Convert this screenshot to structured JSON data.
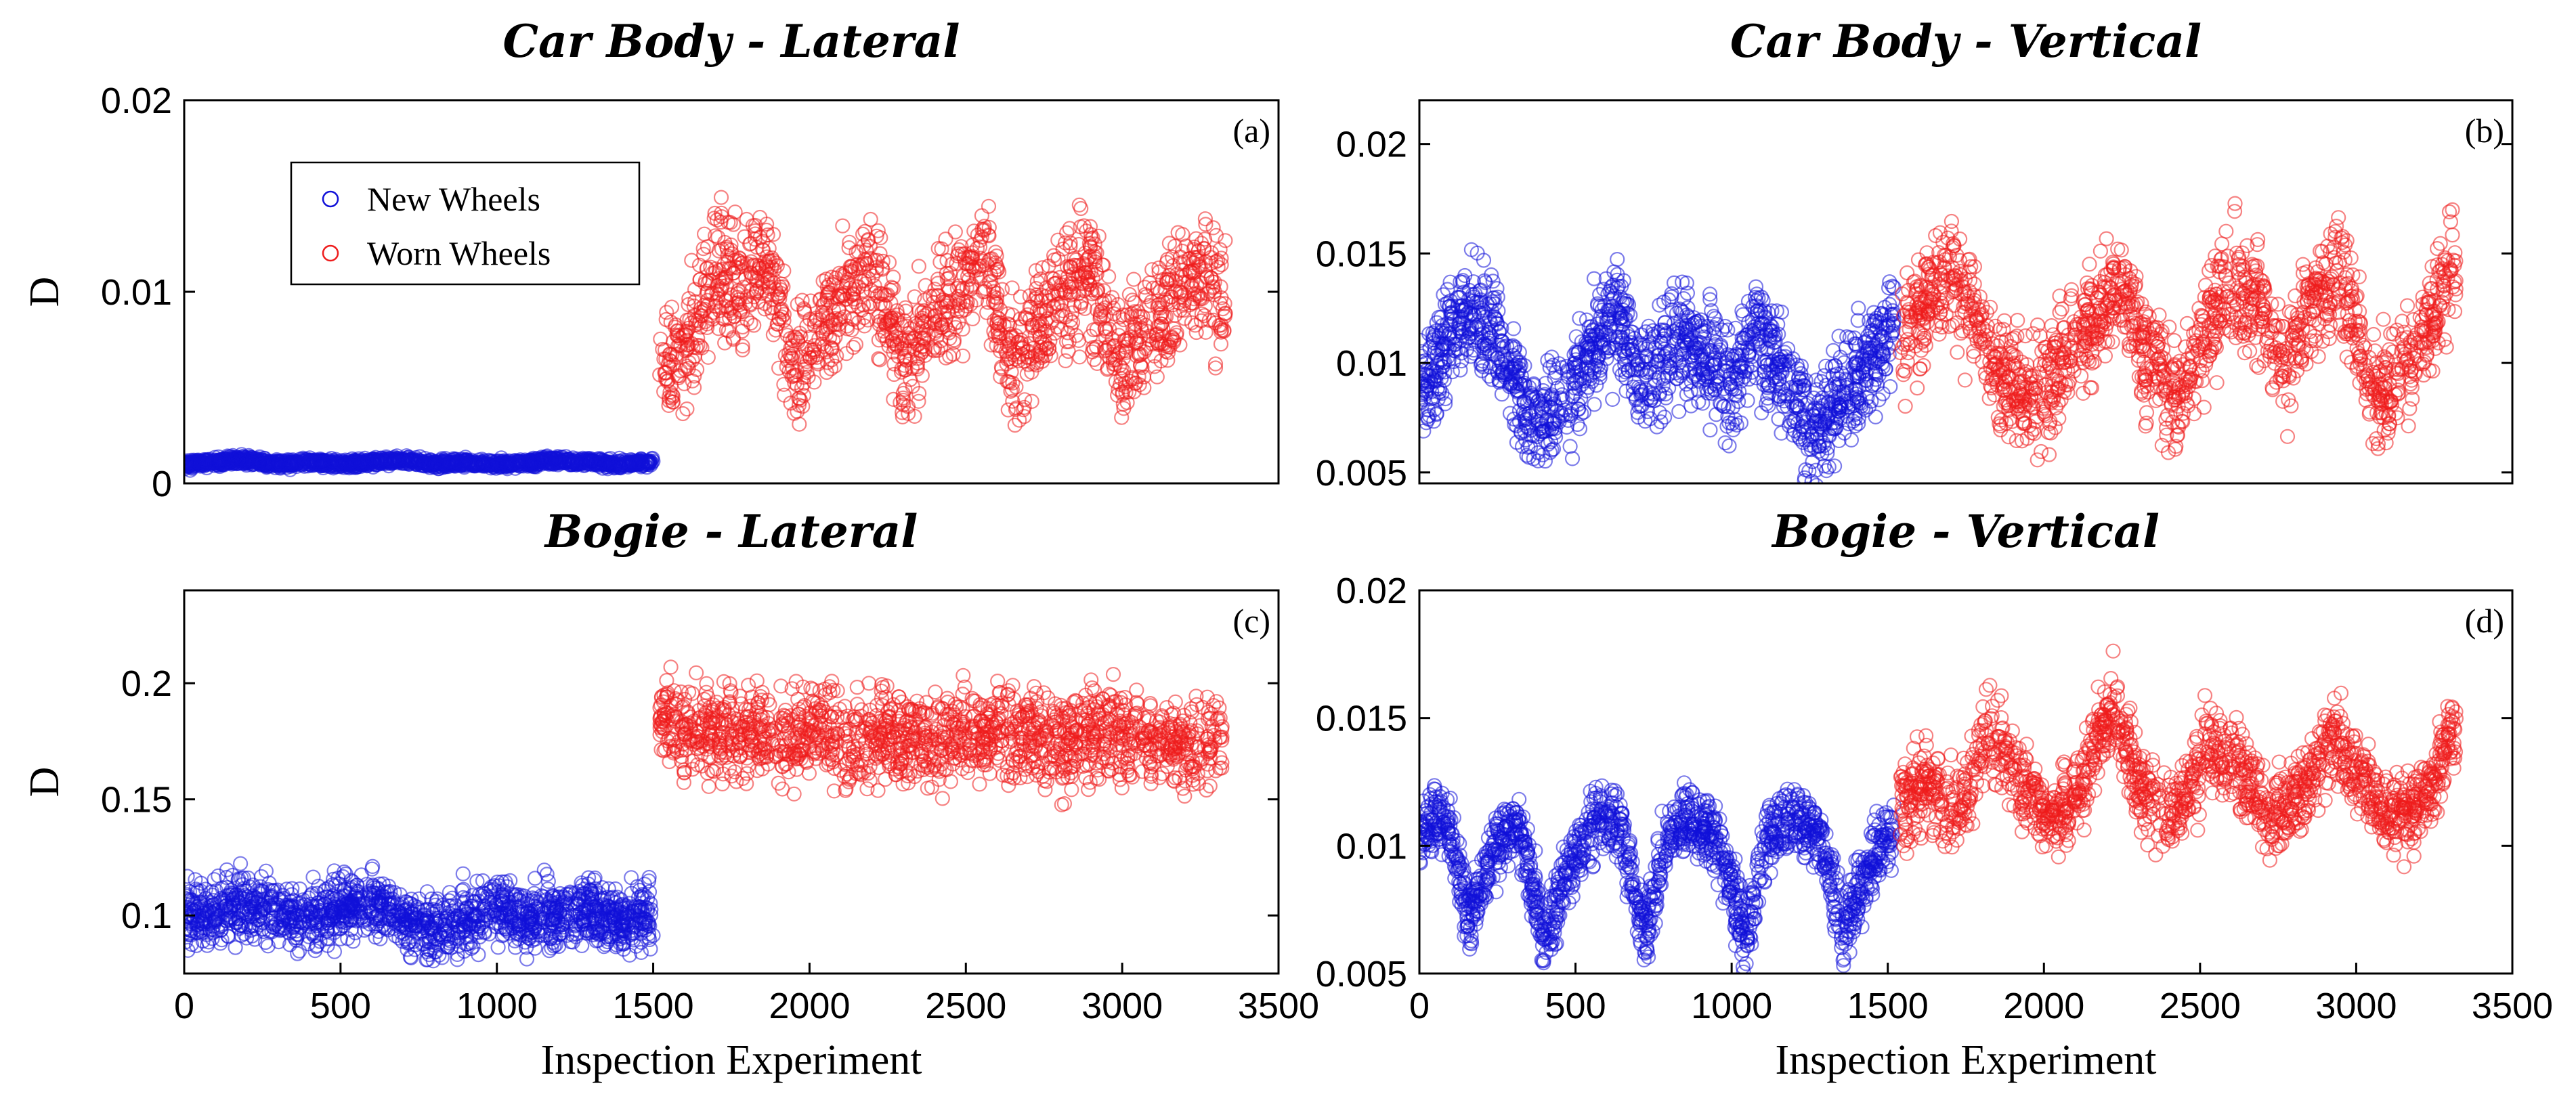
{
  "colors": {
    "new": "#1010d8",
    "worn": "#ee1c1c",
    "axis": "#000000",
    "background": "#ffffff"
  },
  "legend": {
    "entries": [
      "New Wheels",
      "Worn Wheels"
    ],
    "placement": "top-left of panel (a)"
  },
  "chart_data": [
    {
      "id": "a",
      "type": "scatter",
      "title": "Car Body - Lateral",
      "tag": "(a)",
      "xlabel": "",
      "ylabel": "D",
      "xlim": [
        0,
        3500
      ],
      "ylim": [
        0,
        0.02
      ],
      "yticks": [
        0,
        0.01,
        0.02
      ],
      "ytick_labels": [
        "0",
        "0.01",
        "0.02"
      ],
      "xticks": [],
      "xtick_labels": [],
      "series": [
        {
          "name": "New Wheels",
          "x": [
            0,
            100,
            200,
            300,
            400,
            500,
            600,
            700,
            800,
            900,
            1000,
            1100,
            1200,
            1300,
            1400,
            1500
          ],
          "y": [
            0.001,
            0.0011,
            0.0012,
            0.001,
            0.0011,
            0.001,
            0.0011,
            0.0012,
            0.001,
            0.0011,
            0.001,
            0.0011,
            0.0012,
            0.0011,
            0.001,
            0.0011
          ],
          "spread": 0.0002
        },
        {
          "name": "Worn Wheels",
          "x": [
            1520,
            1600,
            1700,
            1780,
            1860,
            1950,
            2030,
            2120,
            2210,
            2300,
            2390,
            2470,
            2560,
            2650,
            2730,
            2820,
            2900,
            2990,
            3080,
            3170,
            3260,
            3330
          ],
          "y": [
            0.006,
            0.007,
            0.011,
            0.01,
            0.012,
            0.006,
            0.008,
            0.01,
            0.011,
            0.006,
            0.009,
            0.01,
            0.012,
            0.006,
            0.008,
            0.01,
            0.011,
            0.006,
            0.008,
            0.01,
            0.011,
            0.009
          ],
          "spread": 0.0028
        }
      ]
    },
    {
      "id": "b",
      "type": "scatter",
      "title": "Car Body - Vertical",
      "tag": "(b)",
      "xlabel": "",
      "ylabel": "",
      "xlim": [
        0,
        3500
      ],
      "ylim": [
        0.0045,
        0.022
      ],
      "yticks": [
        0.005,
        0.01,
        0.015,
        0.02
      ],
      "ytick_labels": [
        "0.005",
        "0.01",
        "0.015",
        "0.02"
      ],
      "xticks": [],
      "xtick_labels": [],
      "series": [
        {
          "name": "New Wheels",
          "x": [
            0,
            90,
            180,
            270,
            360,
            450,
            540,
            630,
            720,
            810,
            900,
            990,
            1080,
            1170,
            1260,
            1350,
            1440,
            1520
          ],
          "y": [
            0.0085,
            0.011,
            0.0125,
            0.0105,
            0.007,
            0.008,
            0.01,
            0.0125,
            0.009,
            0.011,
            0.0105,
            0.009,
            0.0115,
            0.0095,
            0.0065,
            0.0085,
            0.01,
            0.012
          ],
          "spread": 0.0022
        },
        {
          "name": "Worn Wheels",
          "x": [
            1540,
            1620,
            1710,
            1800,
            1880,
            1970,
            2060,
            2150,
            2240,
            2330,
            2420,
            2510,
            2600,
            2690,
            2780,
            2870,
            2960,
            3050,
            3140,
            3230,
            3320
          ],
          "y": [
            0.011,
            0.013,
            0.014,
            0.0115,
            0.009,
            0.008,
            0.01,
            0.012,
            0.0135,
            0.0105,
            0.0085,
            0.011,
            0.014,
            0.0125,
            0.01,
            0.013,
            0.014,
            0.0085,
            0.0095,
            0.0115,
            0.0145
          ],
          "spread": 0.0022
        }
      ]
    },
    {
      "id": "c",
      "type": "scatter",
      "title": "Bogie - Lateral",
      "tag": "(c)",
      "xlabel": "Inspection Experiment",
      "ylabel": "D",
      "xlim": [
        0,
        3500
      ],
      "ylim": [
        0.075,
        0.24
      ],
      "yticks": [
        0.1,
        0.15,
        0.2
      ],
      "ytick_labels": [
        "0.1",
        "0.15",
        "0.2"
      ],
      "xticks": [
        0,
        500,
        1000,
        1500,
        2000,
        2500,
        3000,
        3500
      ],
      "xtick_labels": [
        "0",
        "500",
        "1000",
        "1500",
        "2000",
        "2500",
        "3000",
        "3500"
      ],
      "series": [
        {
          "name": "New Wheels",
          "x": [
            0,
            100,
            200,
            300,
            400,
            500,
            600,
            700,
            800,
            900,
            1000,
            1100,
            1200,
            1300,
            1400,
            1500
          ],
          "y": [
            0.1,
            0.102,
            0.105,
            0.101,
            0.099,
            0.103,
            0.106,
            0.098,
            0.094,
            0.098,
            0.103,
            0.097,
            0.1,
            0.102,
            0.097,
            0.101
          ],
          "spread": 0.012
        },
        {
          "name": "Worn Wheels",
          "x": [
            1520,
            1620,
            1720,
            1820,
            1920,
            2020,
            2120,
            2220,
            2320,
            2420,
            2520,
            2620,
            2720,
            2820,
            2920,
            3020,
            3120,
            3220,
            3320
          ],
          "y": [
            0.185,
            0.18,
            0.178,
            0.182,
            0.176,
            0.181,
            0.175,
            0.179,
            0.177,
            0.174,
            0.178,
            0.18,
            0.176,
            0.173,
            0.179,
            0.177,
            0.175,
            0.172,
            0.176
          ],
          "spread": 0.018
        }
      ]
    },
    {
      "id": "d",
      "type": "scatter",
      "title": "Bogie - Vertical",
      "tag": "(d)",
      "xlabel": "Inspection Experiment",
      "ylabel": "",
      "xlim": [
        0,
        3500
      ],
      "ylim": [
        0.005,
        0.02
      ],
      "yticks": [
        0.005,
        0.01,
        0.015,
        0.02
      ],
      "ytick_labels": [
        "0.005",
        "0.01",
        "0.015",
        "0.02"
      ],
      "xticks": [
        0,
        500,
        1000,
        1500,
        2000,
        2500,
        3000,
        3500
      ],
      "xtick_labels": [
        "0",
        "500",
        "1000",
        "1500",
        "2000",
        "2500",
        "3000",
        "3500"
      ],
      "series": [
        {
          "name": "New Wheels",
          "x": [
            0,
            80,
            160,
            240,
            320,
            400,
            480,
            560,
            640,
            720,
            800,
            880,
            960,
            1040,
            1120,
            1200,
            1280,
            1360,
            1440,
            1520
          ],
          "y": [
            0.0105,
            0.0115,
            0.007,
            0.01,
            0.011,
            0.0065,
            0.009,
            0.011,
            0.0112,
            0.0065,
            0.0105,
            0.011,
            0.01,
            0.0065,
            0.0105,
            0.0112,
            0.0105,
            0.0065,
            0.0095,
            0.0105
          ],
          "spread": 0.0012
        },
        {
          "name": "Worn Wheels",
          "x": [
            1540,
            1620,
            1720,
            1820,
            1920,
            2020,
            2120,
            2220,
            2320,
            2420,
            2520,
            2620,
            2720,
            2820,
            2920,
            3020,
            3120,
            3220,
            3320
          ],
          "y": [
            0.0115,
            0.0125,
            0.011,
            0.0145,
            0.0125,
            0.011,
            0.0125,
            0.0155,
            0.012,
            0.011,
            0.014,
            0.013,
            0.011,
            0.012,
            0.0145,
            0.0125,
            0.011,
            0.012,
            0.0148
          ],
          "spread": 0.0015
        }
      ]
    }
  ]
}
